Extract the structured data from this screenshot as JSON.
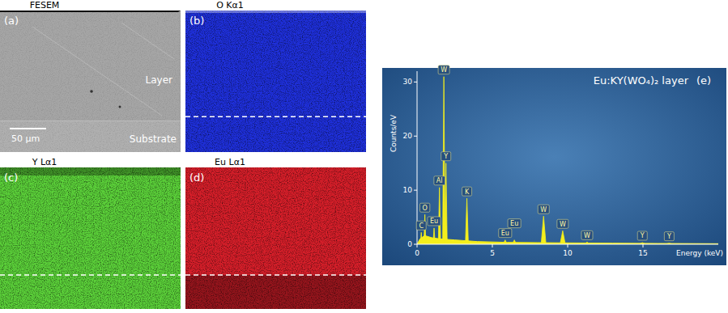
{
  "panels": [
    {
      "panel_label": "(a)",
      "title": "FESEM",
      "type": "image",
      "color": "#a6a6a6",
      "labels": [
        "Layer",
        "Substrate"
      ],
      "scale_bar": "50 µm"
    },
    {
      "panel_label": "(b)",
      "title": "O Kα1",
      "type": "map",
      "color": "#1f30dc"
    },
    {
      "panel_label": "(c)",
      "title": "Y Lα1",
      "type": "map",
      "color": "#5cd23a"
    },
    {
      "panel_label": "(d)",
      "title": "Eu Lα1",
      "type": "map",
      "color": "#d81f2a"
    }
  ],
  "chart_data": {
    "type": "area",
    "panel_label": "(e)",
    "title": "Eu:KY(WO₄)₂ layer",
    "y_label": "Counts/eV",
    "x_label": "Energy (keV)",
    "xlim": [
      0,
      20
    ],
    "xticks": [
      0,
      5,
      10,
      15
    ],
    "ylim": [
      0,
      32
    ],
    "yticks": [
      0,
      10,
      20,
      30
    ],
    "color": "#f4ef1c",
    "x": [
      0,
      0.2,
      0.5,
      1,
      1.5,
      2.5,
      3,
      4,
      6,
      8,
      10,
      13,
      16,
      20
    ],
    "values": [
      0,
      1.0,
      1.6,
      1.2,
      1.0,
      0.8,
      0.7,
      0.5,
      0.35,
      0.3,
      0.25,
      0.2,
      0.15,
      0.1
    ],
    "peaks": [
      {
        "label": "C",
        "x": 0.28,
        "y": 2.2
      },
      {
        "label": "O",
        "x": 0.52,
        "y": 5.5
      },
      {
        "label": "Eu",
        "x": 1.13,
        "y": 3.0
      },
      {
        "label": "Al",
        "x": 1.49,
        "y": 10.5
      },
      {
        "label": "W",
        "x": 1.78,
        "y": 31
      },
      {
        "label": "Y",
        "x": 1.92,
        "y": 15
      },
      {
        "label": "K",
        "x": 3.31,
        "y": 8.5
      },
      {
        "label": "Eu",
        "x": 5.85,
        "y": 0.8
      },
      {
        "label": "Eu",
        "x": 6.46,
        "y": 0.8
      },
      {
        "label": "W",
        "x": 8.4,
        "y": 5.2
      },
      {
        "label": "W",
        "x": 9.67,
        "y": 2.5
      },
      {
        "label": "W",
        "x": 11.29,
        "y": 0.4
      },
      {
        "label": "Y",
        "x": 14.96,
        "y": 0.3
      },
      {
        "label": "Y",
        "x": 16.74,
        "y": 0.2
      }
    ]
  }
}
